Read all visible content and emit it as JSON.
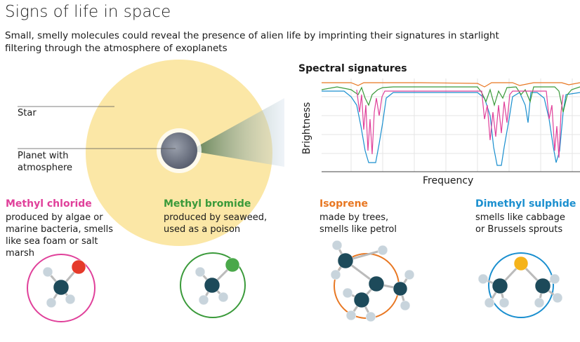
{
  "header": {
    "title": "Signs of life in space",
    "subtitle": "Small, smelly molecules could reveal the presence of alien life by imprinting their signatures in starlight filtering through the atmosphere of exoplanets"
  },
  "diagram": {
    "star_label": "Star",
    "planet_label": "Planet with atmosphere"
  },
  "spectrum": {
    "title": "Spectral signatures",
    "x_label": "Frequency",
    "y_label": "Brightness"
  },
  "molecules": [
    {
      "name": "Methyl chloride",
      "description": "produced by algae or marine bacteria, smells like sea foam or salt marsh"
    },
    {
      "name": "Methyl bromide",
      "description": "produced by seaweed, used as a poison"
    },
    {
      "name": "Isoprene",
      "description": "made by trees, smells like petrol"
    },
    {
      "name": "Dimethyl sulphide",
      "description": "smells like cabbage or Brussels sprouts"
    }
  ]
}
